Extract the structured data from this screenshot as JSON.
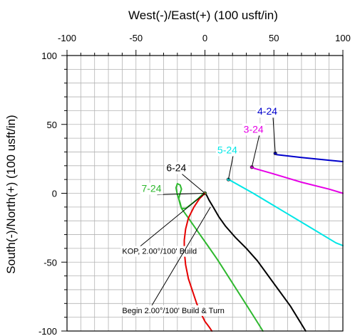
{
  "chart_data": {
    "type": "line",
    "title": "",
    "xlabel": "West(-)/East(+) (100 usft/in)",
    "ylabel": "South(-)/North(+) (100 usft/in)",
    "xlim": [
      -100,
      100
    ],
    "ylim": [
      -100,
      100
    ],
    "x_ticks": [
      "-100",
      "-50",
      "0",
      "50",
      "100"
    ],
    "y_ticks": [
      "100",
      "50",
      "0",
      "-50",
      "-100"
    ],
    "grid": true,
    "series": [
      {
        "name": "4-24",
        "color": "#0000cc",
        "label_at": [
          38,
          57
        ],
        "points": [
          [
            51,
            29
          ],
          [
            52,
            28
          ],
          [
            70,
            26
          ],
          [
            90,
            24
          ],
          [
            100,
            23
          ]
        ]
      },
      {
        "name": "3-24",
        "color": "#e600e6",
        "label_at": [
          28,
          44
        ],
        "points": [
          [
            34,
            19
          ],
          [
            36,
            18
          ],
          [
            50,
            14
          ],
          [
            70,
            8
          ],
          [
            90,
            3
          ],
          [
            100,
            0
          ]
        ]
      },
      {
        "name": "5-24",
        "color": "#00e6e6",
        "label_at": [
          9,
          29
        ],
        "points": [
          [
            17,
            10
          ],
          [
            19,
            9
          ],
          [
            35,
            0
          ],
          [
            55,
            -12
          ],
          [
            75,
            -24
          ],
          [
            95,
            -36
          ],
          [
            100,
            -38
          ]
        ]
      },
      {
        "name": "6-24",
        "color": "#000000",
        "label_at": [
          -28,
          16
        ],
        "points": [
          [
            0,
            0
          ],
          [
            1,
            -1
          ],
          [
            3,
            -5
          ],
          [
            6,
            -10
          ],
          [
            10,
            -17
          ],
          [
            15,
            -24
          ],
          [
            22,
            -32
          ],
          [
            30,
            -40
          ],
          [
            38,
            -49
          ],
          [
            46,
            -60
          ],
          [
            54,
            -71
          ],
          [
            62,
            -82
          ],
          [
            70,
            -95
          ],
          [
            73,
            -100
          ]
        ]
      },
      {
        "name": "7-24",
        "color": "#2eb82e",
        "label_at": [
          -46,
          1
        ],
        "points": [
          [
            0,
            0
          ],
          [
            -1,
            0
          ],
          [
            -5,
            -4
          ],
          [
            -10,
            -8
          ],
          [
            -14,
            -11
          ],
          [
            -17,
            -11
          ],
          [
            -18,
            -8
          ],
          [
            -19,
            -4
          ],
          [
            -18,
            0
          ],
          [
            -17,
            3
          ],
          [
            -18,
            6
          ],
          [
            -20,
            7
          ],
          [
            -21,
            4
          ],
          [
            -20,
            -1
          ],
          [
            -18,
            -7
          ],
          [
            -17,
            -11
          ],
          [
            -12,
            -18
          ],
          [
            -5,
            -28
          ],
          [
            2,
            -38
          ],
          [
            9,
            -48
          ],
          [
            16,
            -59
          ],
          [
            23,
            -70
          ],
          [
            30,
            -81
          ],
          [
            37,
            -92
          ],
          [
            42,
            -100
          ]
        ]
      },
      {
        "name": "",
        "color": "#e60000",
        "points": [
          [
            0,
            0
          ],
          [
            -4,
            -4
          ],
          [
            -8,
            -10
          ],
          [
            -12,
            -18
          ],
          [
            -14,
            -26
          ],
          [
            -15,
            -34
          ],
          [
            -15,
            -42
          ],
          [
            -14,
            -52
          ],
          [
            -12,
            -62
          ],
          [
            -9,
            -71
          ],
          [
            -6,
            -80
          ],
          [
            -3,
            -87
          ],
          [
            0,
            -93
          ],
          [
            3,
            -97
          ],
          [
            5,
            -100
          ]
        ]
      }
    ],
    "annotations": [
      {
        "text": "KOP, 2.00°/100' Build",
        "label_at": [
          -60,
          -44
        ],
        "arrow_from": [
          -50,
          -41
        ],
        "arrow_to": [
          0,
          0
        ]
      },
      {
        "text": "Begin 2.00°/100' Build & Turn",
        "label_at": [
          -60,
          -87
        ],
        "arrow_from": [
          -40,
          -84
        ],
        "arrow_to": [
          4,
          -10
        ]
      }
    ]
  }
}
